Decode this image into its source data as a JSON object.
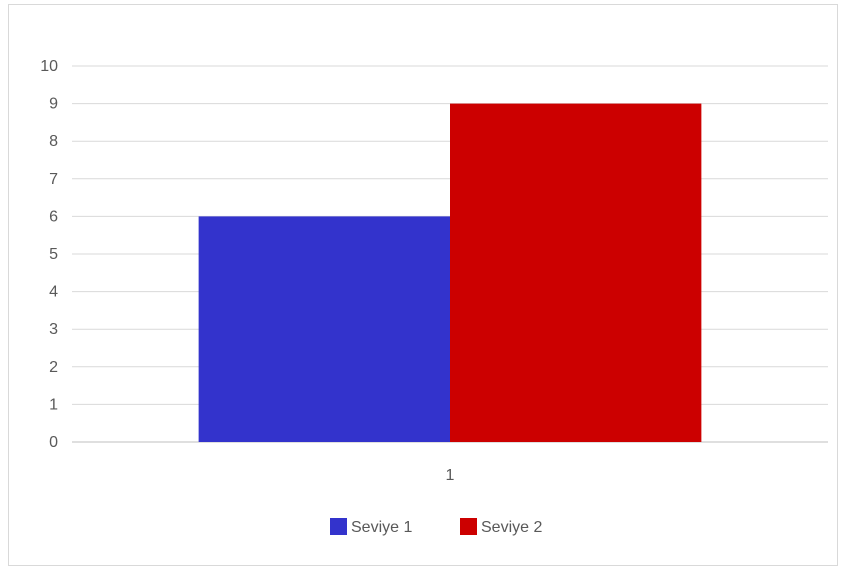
{
  "chart_data": {
    "type": "bar",
    "categories": [
      "1"
    ],
    "series": [
      {
        "name": "Seviye 1",
        "values": [
          6
        ],
        "color": "#3333cc"
      },
      {
        "name": "Seviye 2",
        "values": [
          9
        ],
        "color": "#cc0000"
      }
    ],
    "ylim": [
      0,
      10
    ],
    "y_ticks": [
      "0",
      "1",
      "2",
      "3",
      "4",
      "5",
      "6",
      "7",
      "8",
      "9",
      "10"
    ],
    "grid": "horizontal",
    "legend_position": "bottom"
  }
}
